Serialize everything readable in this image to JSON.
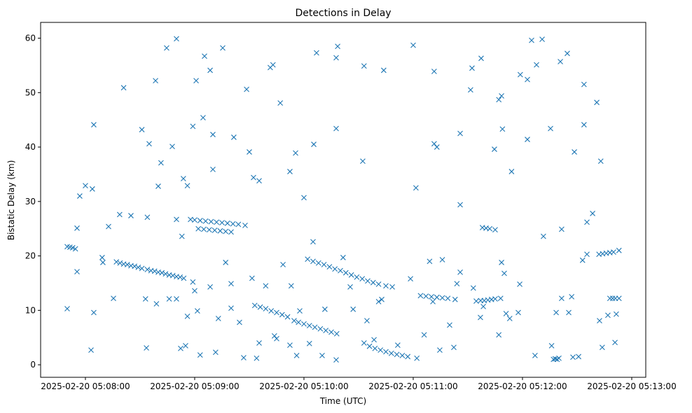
{
  "chart_data": {
    "type": "scatter",
    "title": "Detections in Delay",
    "xlabel": "Time (UTC)",
    "ylabel": "Bistatic Delay (km)",
    "x_units": "seconds after 2025-02-20 05:08:00",
    "xlim": [
      -24.6,
      307.7
    ],
    "ylim": [
      -2.3,
      62.9
    ],
    "x_ticks": [
      {
        "value": 0,
        "label": "2025-02-20 05:08:00"
      },
      {
        "value": 60,
        "label": "2025-02-20 05:09:00"
      },
      {
        "value": 120,
        "label": "2025-02-20 05:10:00"
      },
      {
        "value": 180,
        "label": "2025-02-20 05:11:00"
      },
      {
        "value": 240,
        "label": "2025-02-20 05:12:00"
      },
      {
        "value": 300,
        "label": "2025-02-20 05:13:00"
      }
    ],
    "y_ticks": [
      0,
      10,
      20,
      30,
      40,
      50,
      60
    ],
    "marker": "x",
    "color": "#1f77b4",
    "grid": false,
    "points": [
      [
        -10,
        10.3
      ],
      [
        -10,
        21.7
      ],
      [
        -8.5,
        21.6
      ],
      [
        -7,
        21.5
      ],
      [
        -5.5,
        21.3
      ],
      [
        -4.6,
        25.1
      ],
      [
        -4.6,
        17.1
      ],
      [
        -3.1,
        31
      ],
      [
        0,
        32.9
      ],
      [
        3.8,
        32.3
      ],
      [
        4.6,
        44.1
      ],
      [
        4.6,
        9.6
      ],
      [
        3.1,
        2.7
      ],
      [
        9.2,
        19.7
      ],
      [
        9.6,
        18.8
      ],
      [
        12.7,
        25.4
      ],
      [
        15.4,
        12.2
      ],
      [
        18.8,
        27.6
      ],
      [
        21,
        50.9
      ],
      [
        25,
        27.4
      ],
      [
        17,
        18.9
      ],
      [
        19,
        18.7
      ],
      [
        21,
        18.5
      ],
      [
        23,
        18.4
      ],
      [
        25,
        18.2
      ],
      [
        27,
        18.1
      ],
      [
        29,
        17.9
      ],
      [
        31,
        17.7
      ],
      [
        34,
        17.5
      ],
      [
        36,
        17.3
      ],
      [
        38,
        17.2
      ],
      [
        40,
        17
      ],
      [
        42,
        16.9
      ],
      [
        44,
        16.7
      ],
      [
        46,
        16.5
      ],
      [
        48,
        16.4
      ],
      [
        50,
        16.2
      ],
      [
        52,
        16.1
      ],
      [
        54,
        15.9
      ],
      [
        31,
        43.2
      ],
      [
        33.5,
        3.1
      ],
      [
        35,
        40.6
      ],
      [
        34,
        27.1
      ],
      [
        38.5,
        52.2
      ],
      [
        40,
        32.8
      ],
      [
        41.5,
        37.1
      ],
      [
        44.6,
        58.2
      ],
      [
        47.7,
        40.1
      ],
      [
        50,
        59.9
      ],
      [
        50,
        26.7
      ],
      [
        53,
        23.6
      ],
      [
        53.8,
        34.2
      ],
      [
        56,
        32.9
      ],
      [
        60.8,
        52.2
      ],
      [
        59,
        43.8
      ],
      [
        65.4,
        56.7
      ],
      [
        68.5,
        54.1
      ],
      [
        64.6,
        45.4
      ],
      [
        70,
        42.3
      ],
      [
        75.4,
        58.2
      ],
      [
        70,
        35.9
      ],
      [
        81.5,
        41.8
      ],
      [
        88.5,
        50.6
      ],
      [
        90,
        39.1
      ],
      [
        92.3,
        34.4
      ],
      [
        95.4,
        33.8
      ],
      [
        101.5,
        54.6
      ],
      [
        103,
        55.1
      ],
      [
        107,
        48.1
      ],
      [
        115.4,
        38.9
      ],
      [
        112.3,
        35.5
      ],
      [
        120,
        30.7
      ],
      [
        125.4,
        40.5
      ],
      [
        126.9,
        57.3
      ],
      [
        137.7,
        56.4
      ],
      [
        138.5,
        58.5
      ],
      [
        137.7,
        43.4
      ],
      [
        152.3,
        37.4
      ],
      [
        153,
        54.9
      ],
      [
        163.8,
        54.1
      ],
      [
        180,
        58.7
      ],
      [
        181.5,
        32.5
      ],
      [
        191.5,
        53.9
      ],
      [
        191.5,
        40.6
      ],
      [
        193,
        40
      ],
      [
        205.8,
        42.5
      ],
      [
        205.8,
        29.4
      ],
      [
        211.5,
        50.5
      ],
      [
        212.3,
        54.5
      ],
      [
        217.3,
        56.3
      ],
      [
        224.6,
        39.6
      ],
      [
        227,
        48.7
      ],
      [
        228.5,
        49.4
      ],
      [
        229,
        43.3
      ],
      [
        234,
        35.5
      ],
      [
        238.8,
        53.3
      ],
      [
        242.7,
        52.4
      ],
      [
        242.7,
        41.4
      ],
      [
        245,
        59.6
      ],
      [
        247.7,
        55.1
      ],
      [
        250.8,
        59.8
      ],
      [
        255.4,
        43.4
      ],
      [
        260.8,
        55.7
      ],
      [
        264.6,
        57.2
      ],
      [
        268.5,
        39.1
      ],
      [
        273.8,
        51.5
      ],
      [
        273.8,
        44.1
      ],
      [
        280.8,
        48.2
      ],
      [
        283,
        37.4
      ],
      [
        278.5,
        27.8
      ],
      [
        275.4,
        26.2
      ],
      [
        251.5,
        23.6
      ],
      [
        261.5,
        24.9
      ],
      [
        57.7,
        26.7
      ],
      [
        60,
        26.6
      ],
      [
        63,
        26.5
      ],
      [
        66,
        26.4
      ],
      [
        69,
        26.3
      ],
      [
        72,
        26.2
      ],
      [
        75,
        26.1
      ],
      [
        78,
        26
      ],
      [
        81,
        25.9
      ],
      [
        84,
        25.8
      ],
      [
        87.7,
        25.6
      ],
      [
        62,
        25
      ],
      [
        65,
        24.9
      ],
      [
        68,
        24.8
      ],
      [
        71,
        24.7
      ],
      [
        74,
        24.6
      ],
      [
        77,
        24.5
      ],
      [
        80,
        24.4
      ],
      [
        93,
        10.9
      ],
      [
        96,
        10.6
      ],
      [
        99,
        10.3
      ],
      [
        102,
        9.9
      ],
      [
        105,
        9.6
      ],
      [
        108,
        9.2
      ],
      [
        111,
        8.8
      ],
      [
        114.6,
        8.1
      ],
      [
        117,
        7.8
      ],
      [
        120,
        7.5
      ],
      [
        123,
        7.2
      ],
      [
        126,
        6.9
      ],
      [
        129,
        6.6
      ],
      [
        132,
        6.3
      ],
      [
        135,
        6
      ],
      [
        138,
        5.7
      ],
      [
        122,
        19.4
      ],
      [
        125,
        19
      ],
      [
        128,
        18.7
      ],
      [
        131,
        18.4
      ],
      [
        134,
        18
      ],
      [
        137,
        17.6
      ],
      [
        140,
        17.3
      ],
      [
        143,
        16.9
      ],
      [
        146,
        16.5
      ],
      [
        149,
        16.1
      ],
      [
        152,
        15.8
      ],
      [
        155,
        15.4
      ],
      [
        158,
        15.1
      ],
      [
        161,
        14.8
      ],
      [
        165,
        14.5
      ],
      [
        168.5,
        14.3
      ],
      [
        184,
        12.7
      ],
      [
        187,
        12.6
      ],
      [
        190,
        12.5
      ],
      [
        193,
        12.4
      ],
      [
        196,
        12.3
      ],
      [
        199,
        12.2
      ],
      [
        203,
        12
      ],
      [
        153,
        4
      ],
      [
        156,
        3.4
      ],
      [
        159,
        3
      ],
      [
        162,
        2.7
      ],
      [
        165,
        2.4
      ],
      [
        168,
        2.1
      ],
      [
        171,
        1.9
      ],
      [
        174,
        1.7
      ],
      [
        177,
        1.5
      ],
      [
        182,
        1.2
      ],
      [
        214.6,
        11.7
      ],
      [
        217,
        11.8
      ],
      [
        219,
        11.8
      ],
      [
        221,
        11.9
      ],
      [
        223,
        12
      ],
      [
        225,
        12.1
      ],
      [
        228,
        12.2
      ],
      [
        257,
        1
      ],
      [
        258,
        1.1
      ],
      [
        259,
        1
      ],
      [
        260,
        1.2
      ],
      [
        282,
        20.3
      ],
      [
        284,
        20.4
      ],
      [
        286,
        20.5
      ],
      [
        288,
        20.6
      ],
      [
        290,
        20.7
      ],
      [
        293,
        21
      ],
      [
        288,
        12.2
      ],
      [
        289.5,
        12.2
      ],
      [
        291,
        12.2
      ],
      [
        293,
        12.2
      ],
      [
        218,
        25.2
      ],
      [
        220,
        25.1
      ],
      [
        222,
        25
      ],
      [
        225,
        24.8
      ],
      [
        33,
        12.1
      ],
      [
        39,
        11.2
      ],
      [
        46,
        12.1
      ],
      [
        50,
        12.1
      ],
      [
        52.3,
        3
      ],
      [
        55,
        3.5
      ],
      [
        56,
        8.9
      ],
      [
        59,
        15.2
      ],
      [
        60,
        13.6
      ],
      [
        61.5,
        9.9
      ],
      [
        63,
        1.8
      ],
      [
        68.5,
        14.3
      ],
      [
        71.5,
        2.3
      ],
      [
        73,
        8.5
      ],
      [
        77,
        18.8
      ],
      [
        80,
        14.9
      ],
      [
        80,
        10.4
      ],
      [
        84.6,
        7.8
      ],
      [
        86.9,
        1.3
      ],
      [
        91.5,
        15.9
      ],
      [
        94,
        1.2
      ],
      [
        95.4,
        4
      ],
      [
        99,
        14.5
      ],
      [
        103.8,
        5.3
      ],
      [
        105,
        4.8
      ],
      [
        108.5,
        18.4
      ],
      [
        112.3,
        3.6
      ],
      [
        113,
        14.5
      ],
      [
        116,
        1.7
      ],
      [
        117.7,
        9.9
      ],
      [
        123,
        3.9
      ],
      [
        125,
        22.6
      ],
      [
        130,
        1.7
      ],
      [
        131.5,
        10.2
      ],
      [
        137.7,
        0.9
      ],
      [
        141.5,
        19.7
      ],
      [
        145.4,
        14.3
      ],
      [
        147,
        10.2
      ],
      [
        154.6,
        8.1
      ],
      [
        158.5,
        4.6
      ],
      [
        161,
        11.6
      ],
      [
        162.7,
        12
      ],
      [
        171.5,
        3.6
      ],
      [
        178.5,
        15.8
      ],
      [
        186,
        5.5
      ],
      [
        189,
        19
      ],
      [
        190.8,
        11.6
      ],
      [
        194.6,
        2.7
      ],
      [
        196,
        19.3
      ],
      [
        200,
        7.3
      ],
      [
        202.3,
        3.2
      ],
      [
        204,
        14.9
      ],
      [
        205.8,
        17
      ],
      [
        213,
        14.1
      ],
      [
        216.9,
        8.7
      ],
      [
        218.5,
        10.7
      ],
      [
        227,
        5.5
      ],
      [
        228.5,
        18.8
      ],
      [
        230,
        16.8
      ],
      [
        231,
        9.4
      ],
      [
        238.5,
        14.8
      ],
      [
        233,
        8.5
      ],
      [
        237.7,
        9.6
      ],
      [
        246.9,
        1.7
      ],
      [
        256,
        3.5
      ],
      [
        258.5,
        9.6
      ],
      [
        261.5,
        12.2
      ],
      [
        265.4,
        9.6
      ],
      [
        267,
        12.5
      ],
      [
        267.7,
        1.4
      ],
      [
        270.8,
        1.5
      ],
      [
        273,
        19.2
      ],
      [
        275.4,
        20.3
      ],
      [
        282.3,
        8.1
      ],
      [
        283.8,
        3.2
      ],
      [
        286.9,
        9.1
      ],
      [
        290.8,
        4.1
      ],
      [
        291.5,
        9.3
      ]
    ]
  }
}
